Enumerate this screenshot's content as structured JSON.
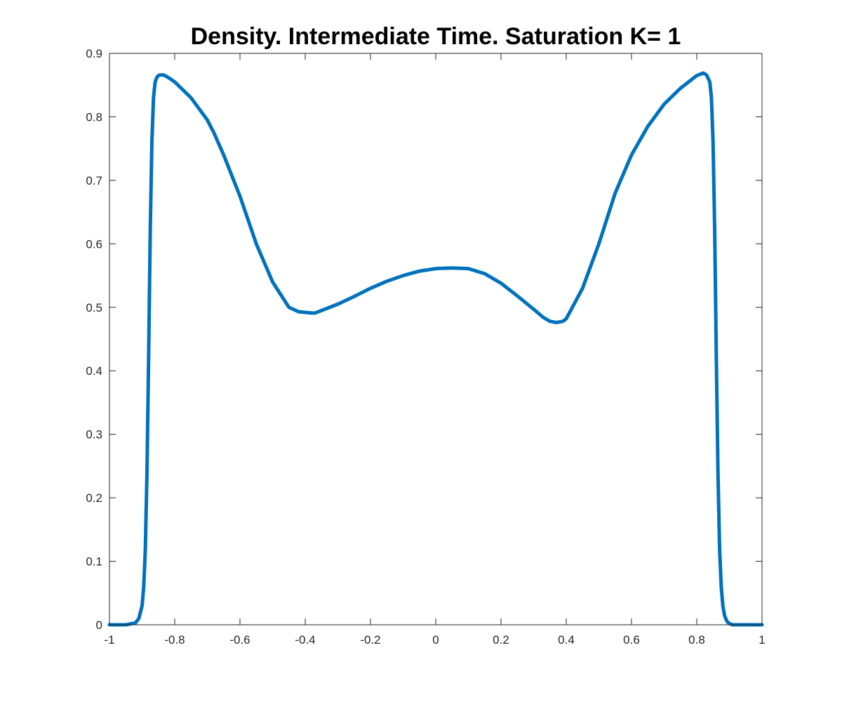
{
  "chart_data": {
    "type": "line",
    "title": "Density. Intermediate Time. Saturation K= 1",
    "xlabel": "",
    "ylabel": "",
    "xlim": [
      -1,
      1
    ],
    "ylim": [
      0,
      0.9
    ],
    "x_ticks": [
      -1,
      -0.8,
      -0.6,
      -0.4,
      -0.2,
      0,
      0.2,
      0.4,
      0.6,
      0.8,
      1
    ],
    "x_tick_labels": [
      "-1",
      "-0.8",
      "-0.6",
      "-0.4",
      "-0.2",
      "0",
      "0.2",
      "0.4",
      "0.6",
      "0.8",
      "1"
    ],
    "y_ticks": [
      0,
      0.1,
      0.2,
      0.3,
      0.4,
      0.5,
      0.6,
      0.7,
      0.8,
      0.9
    ],
    "y_tick_labels": [
      "0",
      "0.1",
      "0.2",
      "0.3",
      "0.4",
      "0.5",
      "0.6",
      "0.7",
      "0.8",
      "0.9"
    ],
    "grid": false,
    "legend": "none",
    "series": [
      {
        "color": "#0072BD",
        "x": [
          -1.0,
          -0.95,
          -0.92,
          -0.91,
          -0.9,
          -0.895,
          -0.89,
          -0.885,
          -0.88,
          -0.875,
          -0.87,
          -0.865,
          -0.86,
          -0.855,
          -0.85,
          -0.845,
          -0.84,
          -0.835,
          -0.83,
          -0.82,
          -0.8,
          -0.78,
          -0.75,
          -0.7,
          -0.68,
          -0.65,
          -0.6,
          -0.55,
          -0.5,
          -0.45,
          -0.42,
          -0.4,
          -0.38,
          -0.37,
          -0.35,
          -0.3,
          -0.25,
          -0.2,
          -0.15,
          -0.1,
          -0.05,
          0.0,
          0.05,
          0.1,
          0.15,
          0.2,
          0.25,
          0.3,
          0.33,
          0.35,
          0.37,
          0.39,
          0.4,
          0.45,
          0.5,
          0.55,
          0.6,
          0.65,
          0.7,
          0.75,
          0.8,
          0.82,
          0.83,
          0.84,
          0.845,
          0.85,
          0.855,
          0.86,
          0.865,
          0.87,
          0.875,
          0.88,
          0.885,
          0.89,
          0.895,
          0.9,
          0.91,
          0.92,
          0.95,
          1.0
        ],
        "y": [
          0.0,
          0.0,
          0.003,
          0.01,
          0.03,
          0.06,
          0.12,
          0.24,
          0.42,
          0.62,
          0.76,
          0.83,
          0.855,
          0.862,
          0.865,
          0.866,
          0.866,
          0.866,
          0.865,
          0.862,
          0.855,
          0.845,
          0.83,
          0.795,
          0.775,
          0.74,
          0.675,
          0.6,
          0.54,
          0.5,
          0.493,
          0.492,
          0.491,
          0.491,
          0.495,
          0.505,
          0.517,
          0.53,
          0.541,
          0.55,
          0.557,
          0.561,
          0.562,
          0.561,
          0.553,
          0.538,
          0.518,
          0.497,
          0.484,
          0.478,
          0.476,
          0.478,
          0.482,
          0.53,
          0.6,
          0.68,
          0.74,
          0.785,
          0.82,
          0.845,
          0.865,
          0.869,
          0.866,
          0.855,
          0.83,
          0.76,
          0.62,
          0.42,
          0.24,
          0.12,
          0.06,
          0.03,
          0.015,
          0.008,
          0.004,
          0.002,
          0.0,
          0.0,
          0.0,
          0.0
        ]
      }
    ]
  }
}
